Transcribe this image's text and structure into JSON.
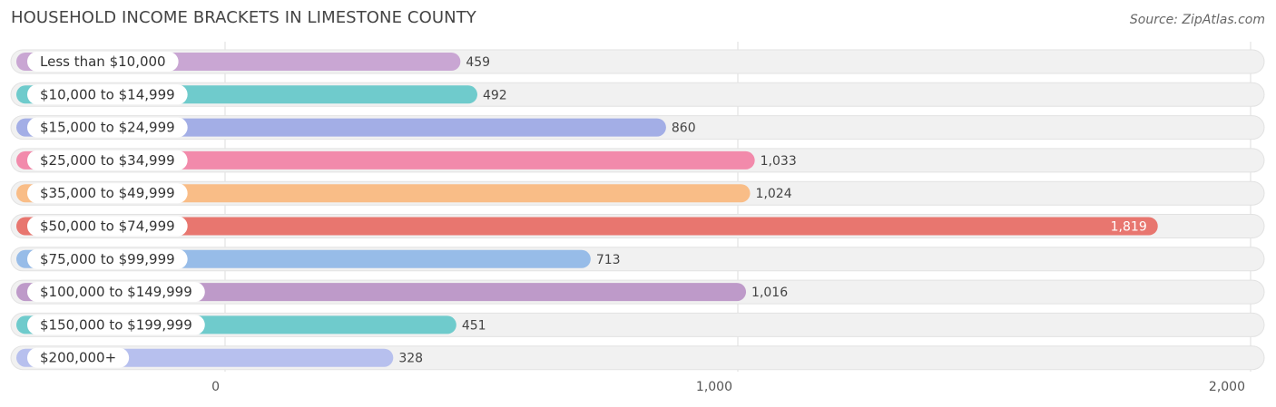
{
  "header": {
    "title": "HOUSEHOLD INCOME BRACKETS IN LIMESTONE COUNTY",
    "source": "Source: ZipAtlas.com"
  },
  "chart_data": {
    "type": "bar",
    "orientation": "horizontal",
    "title": "HOUSEHOLD INCOME BRACKETS IN LIMESTONE COUNTY",
    "categories": [
      "Less than $10,000",
      "$10,000 to $14,999",
      "$15,000 to $24,999",
      "$25,000 to $34,999",
      "$35,000 to $49,999",
      "$50,000 to $74,999",
      "$75,000 to $99,999",
      "$100,000 to $149,999",
      "$150,000 to $199,999",
      "$200,000+"
    ],
    "values": [
      459,
      492,
      860,
      1033,
      1024,
      1819,
      713,
      1016,
      451,
      328
    ],
    "value_labels": [
      "459",
      "492",
      "860",
      "1,033",
      "1,024",
      "1,819",
      "713",
      "1,016",
      "451",
      "328"
    ],
    "colors": [
      "#c9a6d3",
      "#6fcbcc",
      "#a3aee6",
      "#f28aab",
      "#f9bd87",
      "#e8766f",
      "#97bce8",
      "#be9ac9",
      "#6fcbcc",
      "#b7c0ee"
    ],
    "xlim": [
      0,
      2000
    ],
    "x_ticks": [
      0,
      1000,
      2000
    ],
    "x_tick_labels": [
      "0",
      "1,000",
      "2,000"
    ],
    "grid": true,
    "xlabel": "",
    "ylabel": ""
  }
}
